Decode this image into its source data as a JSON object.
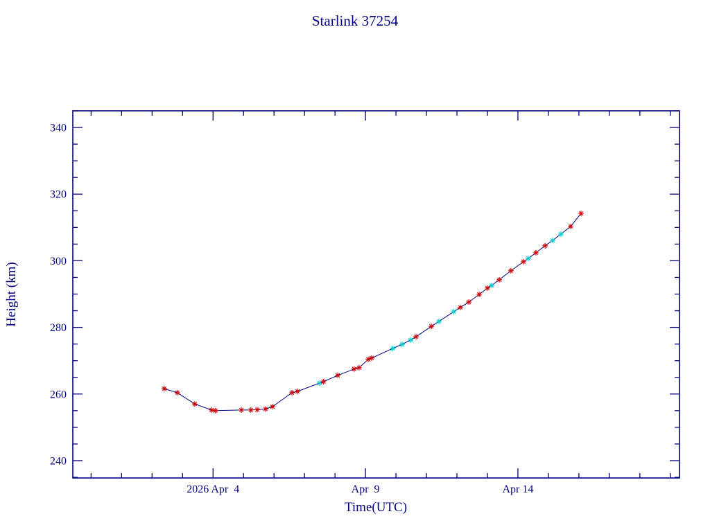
{
  "chart_data": {
    "type": "line",
    "title": "Starlink 37254",
    "xlabel": "Time(UTC)",
    "ylabel": "Height (km)",
    "xlim": [
      -0.6,
      19.3
    ],
    "ylim": [
      234.8,
      345.0
    ],
    "x_major_ticks": [
      {
        "value": 4,
        "label": "2026 Apr  4"
      },
      {
        "value": 9,
        "label": "Apr  9"
      },
      {
        "value": 14,
        "label": "Apr 14"
      }
    ],
    "x_minor_step": 1,
    "y_major_ticks": [
      240,
      260,
      280,
      300,
      320,
      340
    ],
    "y_minor_step": 5,
    "grid": false,
    "legend": "none",
    "axis_color": "#000080",
    "line_color": "#000080",
    "background_color": "#ffffff",
    "marker_style": "asterisk",
    "marker_colors": {
      "red": "#cc0000",
      "cyan": "#00cdcd"
    },
    "x_units_note": "day of April 2026 (UTC)",
    "points": [
      {
        "x": 2.4,
        "y": 261.6,
        "c": "red"
      },
      {
        "x": 2.83,
        "y": 260.4,
        "c": "red"
      },
      {
        "x": 3.4,
        "y": 257.0,
        "c": "red"
      },
      {
        "x": 3.95,
        "y": 255.2,
        "c": "red"
      },
      {
        "x": 4.08,
        "y": 255.0,
        "c": "red"
      },
      {
        "x": 4.93,
        "y": 255.2,
        "c": "red"
      },
      {
        "x": 5.24,
        "y": 255.2,
        "c": "red"
      },
      {
        "x": 5.45,
        "y": 255.3,
        "c": "red"
      },
      {
        "x": 5.72,
        "y": 255.5,
        "c": "red"
      },
      {
        "x": 5.95,
        "y": 256.2,
        "c": "red"
      },
      {
        "x": 6.59,
        "y": 260.4,
        "c": "red"
      },
      {
        "x": 6.77,
        "y": 260.8,
        "c": "red"
      },
      {
        "x": 7.5,
        "y": 263.3,
        "c": "cyan"
      },
      {
        "x": 7.62,
        "y": 263.7,
        "c": "red"
      },
      {
        "x": 8.09,
        "y": 265.6,
        "c": "red"
      },
      {
        "x": 8.63,
        "y": 267.5,
        "c": "red"
      },
      {
        "x": 8.79,
        "y": 267.9,
        "c": "red"
      },
      {
        "x": 9.09,
        "y": 270.4,
        "c": "red"
      },
      {
        "x": 9.2,
        "y": 270.8,
        "c": "red"
      },
      {
        "x": 9.9,
        "y": 273.7,
        "c": "cyan"
      },
      {
        "x": 10.2,
        "y": 274.9,
        "c": "cyan"
      },
      {
        "x": 10.48,
        "y": 276.2,
        "c": "cyan"
      },
      {
        "x": 10.66,
        "y": 277.2,
        "c": "red"
      },
      {
        "x": 11.16,
        "y": 280.3,
        "c": "red"
      },
      {
        "x": 11.41,
        "y": 281.8,
        "c": "cyan"
      },
      {
        "x": 11.89,
        "y": 284.7,
        "c": "cyan"
      },
      {
        "x": 12.11,
        "y": 286.0,
        "c": "red"
      },
      {
        "x": 12.39,
        "y": 287.6,
        "c": "red"
      },
      {
        "x": 12.73,
        "y": 289.9,
        "c": "red"
      },
      {
        "x": 13.0,
        "y": 291.8,
        "c": "red"
      },
      {
        "x": 13.14,
        "y": 292.6,
        "c": "cyan"
      },
      {
        "x": 13.39,
        "y": 294.3,
        "c": "red"
      },
      {
        "x": 13.77,
        "y": 297.0,
        "c": "red"
      },
      {
        "x": 14.18,
        "y": 299.7,
        "c": "red"
      },
      {
        "x": 14.34,
        "y": 300.7,
        "c": "cyan"
      },
      {
        "x": 14.59,
        "y": 302.4,
        "c": "red"
      },
      {
        "x": 14.89,
        "y": 304.5,
        "c": "red"
      },
      {
        "x": 15.14,
        "y": 306.1,
        "c": "cyan"
      },
      {
        "x": 15.41,
        "y": 308.0,
        "c": "cyan"
      },
      {
        "x": 15.73,
        "y": 310.3,
        "c": "red"
      },
      {
        "x": 16.07,
        "y": 314.2,
        "c": "red"
      }
    ]
  }
}
